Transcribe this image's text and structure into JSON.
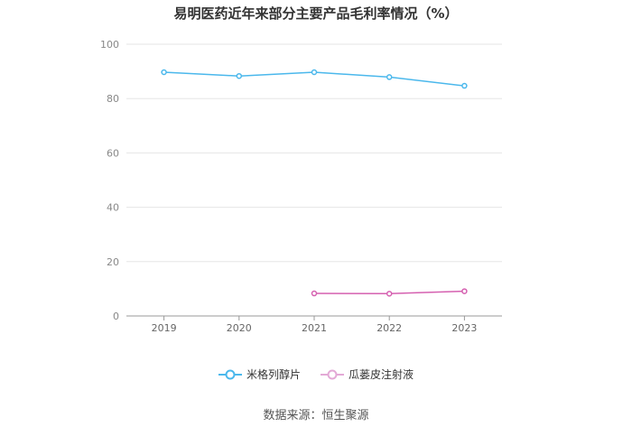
{
  "title": "易明医药近年来部分主要产品毛利率情况（%）",
  "source": "数据来源：恒生聚源",
  "chart_data": {
    "type": "line",
    "x": [
      "2019",
      "2020",
      "2021",
      "2022",
      "2023"
    ],
    "ylim": [
      0,
      100
    ],
    "yticks": [
      0,
      20,
      40,
      60,
      80,
      100
    ],
    "grid": true,
    "legend_position": "bottom",
    "series": [
      {
        "name": "米格列醇片",
        "color": "#4bb8ec",
        "values": [
          89.7,
          88.3,
          89.7,
          87.9,
          84.7
        ]
      },
      {
        "name": "瓜蒌皮注射液",
        "color": "#d560b0",
        "values": [
          null,
          null,
          8.3,
          8.2,
          9.1
        ]
      }
    ]
  }
}
